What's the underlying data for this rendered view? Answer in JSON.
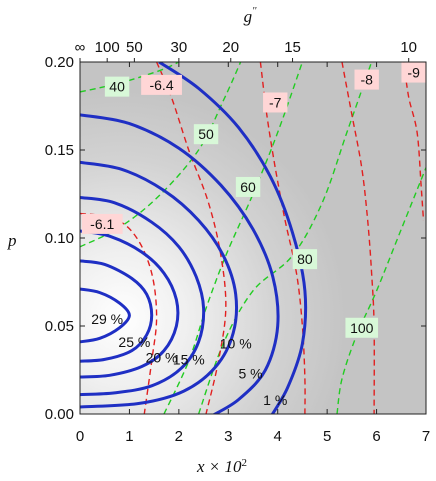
{
  "chart_data": {
    "type": "contour",
    "xlabel": "x × 10",
    "xlabel_exp": "2",
    "ylabel": "p",
    "top_label": "g",
    "top_label_sup": "''",
    "xlim": [
      0,
      7
    ],
    "ylim": [
      0,
      0.2
    ],
    "x_ticks": [
      "0",
      "1",
      "2",
      "3",
      "4",
      "5",
      "6",
      "7"
    ],
    "y_ticks": [
      "0.00",
      "0.05",
      "0.10",
      "0.15",
      "0.20"
    ],
    "top_ticks": [
      {
        "label": "∞",
        "x": 0.0
      },
      {
        "label": "100",
        "x": 0.55
      },
      {
        "label": "50",
        "x": 1.1
      },
      {
        "label": "30",
        "x": 2.0
      },
      {
        "label": "20",
        "x": 3.05
      },
      {
        "label": "15",
        "x": 4.3
      },
      {
        "label": "10",
        "x": 6.65
      }
    ],
    "colors": {
      "background": "#c8c8c8",
      "blue_contour": "#1f2fc4",
      "red_contour": "#e12020",
      "green_contour": "#22cc22",
      "green_box": "#d8f8d8",
      "red_box": "#ffd6d6"
    },
    "blue_contours": [
      {
        "label": "29 %",
        "lx": 0.55,
        "ly": 0.054,
        "pts": [
          [
            0,
            0.071
          ],
          [
            0.4,
            0.069
          ],
          [
            0.8,
            0.063
          ],
          [
            1.0,
            0.056
          ],
          [
            0.8,
            0.049
          ],
          [
            0.4,
            0.043
          ],
          [
            0,
            0.041
          ]
        ]
      },
      {
        "label": "25 %",
        "lx": 1.1,
        "ly": 0.041,
        "pts": [
          [
            0,
            0.087
          ],
          [
            0.5,
            0.085
          ],
          [
            1.05,
            0.077
          ],
          [
            1.35,
            0.068
          ],
          [
            1.45,
            0.056
          ],
          [
            1.35,
            0.045
          ],
          [
            1.05,
            0.036
          ],
          [
            0.5,
            0.031
          ],
          [
            0,
            0.03
          ]
        ]
      },
      {
        "label": "20 %",
        "lx": 1.65,
        "ly": 0.032,
        "pts": [
          [
            0,
            0.104
          ],
          [
            0.6,
            0.101
          ],
          [
            1.25,
            0.092
          ],
          [
            1.7,
            0.08
          ],
          [
            1.95,
            0.065
          ],
          [
            1.95,
            0.05
          ],
          [
            1.7,
            0.036
          ],
          [
            1.25,
            0.027
          ],
          [
            0.6,
            0.022
          ],
          [
            0,
            0.021
          ]
        ]
      },
      {
        "label": "15 %",
        "lx": 2.2,
        "ly": 0.031,
        "pts": [
          [
            0,
            0.123
          ],
          [
            0.7,
            0.12
          ],
          [
            1.45,
            0.109
          ],
          [
            2.0,
            0.095
          ],
          [
            2.35,
            0.078
          ],
          [
            2.5,
            0.06
          ],
          [
            2.4,
            0.041
          ],
          [
            2.05,
            0.026
          ],
          [
            1.45,
            0.016
          ],
          [
            0.7,
            0.012
          ],
          [
            0,
            0.011
          ]
        ]
      },
      {
        "label": "10 %",
        "lx": 3.15,
        "ly": 0.04,
        "pts": [
          [
            0,
            0.143
          ],
          [
            0.85,
            0.139
          ],
          [
            1.7,
            0.127
          ],
          [
            2.4,
            0.11
          ],
          [
            2.9,
            0.09
          ],
          [
            3.15,
            0.068
          ],
          [
            3.1,
            0.046
          ],
          [
            2.75,
            0.027
          ],
          [
            2.1,
            0.013
          ],
          [
            1.2,
            0.006
          ],
          [
            0,
            0.004
          ]
        ]
      },
      {
        "label": "5 %",
        "lx": 3.45,
        "ly": 0.023,
        "pts": [
          [
            0,
            0.17
          ],
          [
            1.0,
            0.165
          ],
          [
            2.0,
            0.151
          ],
          [
            2.85,
            0.13
          ],
          [
            3.5,
            0.105
          ],
          [
            3.9,
            0.078
          ],
          [
            4.0,
            0.05
          ],
          [
            3.75,
            0.025
          ],
          [
            3.2,
            0.008
          ],
          [
            2.6,
            -0.002
          ]
        ]
      },
      {
        "label": "1 %",
        "lx": 3.95,
        "ly": 0.008,
        "pts": [
          [
            1.6,
            0.2
          ],
          [
            2.4,
            0.185
          ],
          [
            3.2,
            0.163
          ],
          [
            3.85,
            0.135
          ],
          [
            4.3,
            0.103
          ],
          [
            4.55,
            0.07
          ],
          [
            4.5,
            0.04
          ],
          [
            4.2,
            0.015
          ],
          [
            3.85,
            -0.002
          ]
        ]
      }
    ],
    "red_contours": [
      {
        "label": "-6.1",
        "lx": 0.45,
        "ly": 0.108,
        "pts": [
          [
            0,
            0.114
          ],
          [
            0.7,
            0.111
          ],
          [
            1.15,
            0.1
          ],
          [
            1.45,
            0.08
          ],
          [
            1.55,
            0.055
          ],
          [
            1.45,
            0.03
          ],
          [
            1.3,
            0.0
          ]
        ]
      },
      {
        "label": "-6.4",
        "lx": 1.65,
        "ly": 0.187,
        "pts": [
          [
            1.55,
            0.2
          ],
          [
            1.85,
            0.18
          ],
          [
            2.2,
            0.15
          ],
          [
            2.6,
            0.12
          ],
          [
            2.85,
            0.09
          ],
          [
            2.95,
            0.06
          ],
          [
            2.8,
            0.03
          ],
          [
            2.55,
            0.0
          ]
        ]
      },
      {
        "label": "-7",
        "lx": 3.95,
        "ly": 0.177,
        "pts": [
          [
            3.65,
            0.2
          ],
          [
            3.78,
            0.17
          ],
          [
            3.95,
            0.14
          ],
          [
            4.15,
            0.11
          ],
          [
            4.38,
            0.08
          ],
          [
            4.5,
            0.05
          ],
          [
            4.55,
            0.02
          ],
          [
            4.55,
            0.0
          ]
        ]
      },
      {
        "label": "-8",
        "lx": 5.8,
        "ly": 0.19,
        "pts": [
          [
            5.3,
            0.2
          ],
          [
            5.5,
            0.17
          ],
          [
            5.7,
            0.14
          ],
          [
            5.82,
            0.11
          ],
          [
            5.9,
            0.08
          ],
          [
            5.95,
            0.05
          ],
          [
            5.95,
            0.0
          ]
        ]
      },
      {
        "label": "-9",
        "lx": 6.75,
        "ly": 0.194,
        "pts": [
          [
            6.55,
            0.2
          ],
          [
            6.65,
            0.18
          ],
          [
            6.82,
            0.16
          ],
          [
            6.9,
            0.13
          ],
          [
            6.95,
            0.11
          ]
        ]
      }
    ],
    "green_contours": [
      {
        "label": "40",
        "lx": 0.75,
        "ly": 0.186,
        "pts": [
          [
            0,
            0.183
          ],
          [
            0.8,
            0.188
          ],
          [
            1.6,
            0.195
          ],
          [
            2.0,
            0.2
          ]
        ]
      },
      {
        "label": "50",
        "lx": 2.55,
        "ly": 0.159,
        "pts": [
          [
            0,
            0.095
          ],
          [
            0.8,
            0.106
          ],
          [
            1.6,
            0.124
          ],
          [
            2.4,
            0.15
          ],
          [
            2.9,
            0.178
          ],
          [
            3.25,
            0.2
          ]
        ]
      },
      {
        "label": "60",
        "lx": 3.4,
        "ly": 0.129,
        "pts": [
          [
            1.7,
            0.0
          ],
          [
            2.2,
            0.03
          ],
          [
            2.55,
            0.06
          ],
          [
            2.95,
            0.09
          ],
          [
            3.5,
            0.125
          ],
          [
            4.0,
            0.16
          ],
          [
            4.5,
            0.2
          ]
        ]
      },
      {
        "label": "80",
        "lx": 4.55,
        "ly": 0.088,
        "pts": [
          [
            2.4,
            0.0
          ],
          [
            2.9,
            0.04
          ],
          [
            3.5,
            0.07
          ],
          [
            4.3,
            0.09
          ],
          [
            4.9,
            0.12
          ],
          [
            5.4,
            0.16
          ],
          [
            5.9,
            0.2
          ]
        ]
      },
      {
        "label": "100",
        "lx": 5.7,
        "ly": 0.049,
        "pts": [
          [
            5.2,
            0.0
          ],
          [
            5.3,
            0.02
          ],
          [
            5.6,
            0.045
          ],
          [
            6.0,
            0.07
          ],
          [
            6.5,
            0.105
          ],
          [
            7.0,
            0.14
          ]
        ]
      }
    ]
  }
}
